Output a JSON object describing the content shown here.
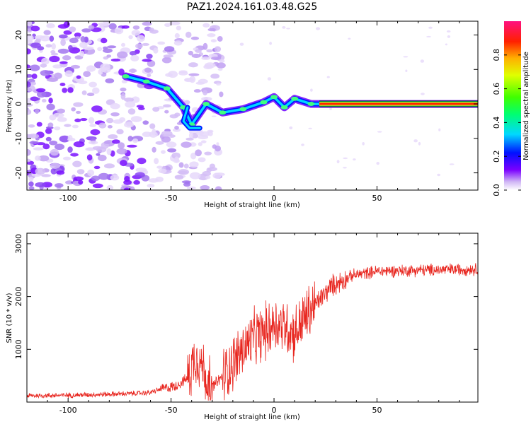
{
  "figure": {
    "title": "PAZ1.2024.161.03.48.G25"
  },
  "chart_data": [
    {
      "type": "heatmap",
      "xlabel": "Height of straight line (km)",
      "ylabel": "Frequency (Hz)",
      "xlim": [
        -120,
        99
      ],
      "ylim": [
        -25,
        24
      ],
      "xticks": [
        -100,
        -50,
        0,
        50
      ],
      "yticks": [
        -20,
        -10,
        0,
        10,
        20
      ],
      "colorbar": {
        "label": "Normalized spectral amplitude",
        "range": [
          0,
          1
        ],
        "ticks": [
          0.0,
          0.2,
          0.4,
          0.6,
          0.8
        ]
      },
      "ridge": [
        {
          "x": -72,
          "y": 8
        },
        {
          "x": -62,
          "y": 6.5
        },
        {
          "x": -52,
          "y": 4.5
        },
        {
          "x": -44,
          "y": -1
        },
        {
          "x": -40,
          "y": -6
        },
        {
          "x": -33,
          "y": 0
        },
        {
          "x": -25,
          "y": -2.5
        },
        {
          "x": -15,
          "y": -1.5
        },
        {
          "x": -5,
          "y": 0.5
        },
        {
          "x": 0,
          "y": 2
        },
        {
          "x": 5,
          "y": -1
        },
        {
          "x": 10,
          "y": 1.5
        },
        {
          "x": 18,
          "y": 0
        },
        {
          "x": 25,
          "y": 0
        },
        {
          "x": 99,
          "y": 0
        }
      ]
    },
    {
      "type": "line",
      "xlabel": "Height of straight line (km)",
      "ylabel": "SNR (10 * v/v)",
      "xlim": [
        -120,
        99
      ],
      "ylim": [
        0,
        3200
      ],
      "xticks": [
        -100,
        -50,
        0,
        50
      ],
      "yticks": [
        1000,
        2000,
        3000
      ],
      "series": [
        {
          "color": "#e8261f",
          "values": [
            {
              "x": -120,
              "y": 120
            },
            {
              "x": -100,
              "y": 130
            },
            {
              "x": -80,
              "y": 150
            },
            {
              "x": -70,
              "y": 160
            },
            {
              "x": -60,
              "y": 180
            },
            {
              "x": -55,
              "y": 250
            },
            {
              "x": -48,
              "y": 300
            },
            {
              "x": -42,
              "y": 450
            },
            {
              "x": -38,
              "y": 900
            },
            {
              "x": -35,
              "y": 700
            },
            {
              "x": -31,
              "y": 250
            },
            {
              "x": -27,
              "y": 400
            },
            {
              "x": -22,
              "y": 650
            },
            {
              "x": -15,
              "y": 1000
            },
            {
              "x": -10,
              "y": 1200
            },
            {
              "x": -5,
              "y": 1300
            },
            {
              "x": 0,
              "y": 1500
            },
            {
              "x": 5,
              "y": 1450
            },
            {
              "x": 10,
              "y": 1300
            },
            {
              "x": 15,
              "y": 1600
            },
            {
              "x": 20,
              "y": 1850
            },
            {
              "x": 28,
              "y": 2200
            },
            {
              "x": 38,
              "y": 2400
            },
            {
              "x": 50,
              "y": 2480
            },
            {
              "x": 70,
              "y": 2500
            },
            {
              "x": 99,
              "y": 2520
            }
          ]
        }
      ]
    }
  ]
}
